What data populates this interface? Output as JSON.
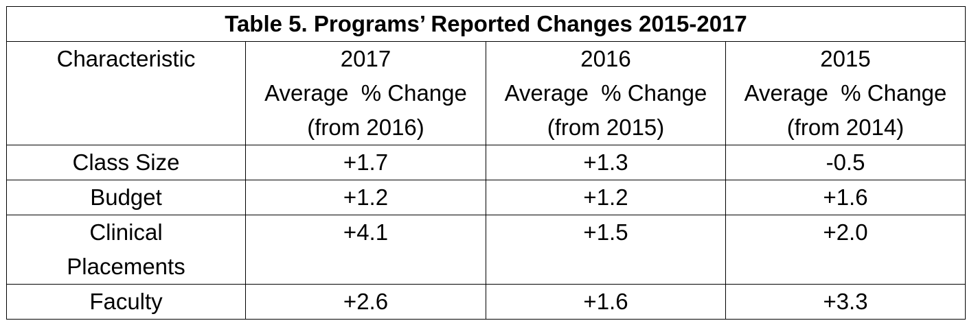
{
  "table": {
    "title": "Table 5. Programs’ Reported Changes 2015-2017",
    "columns": [
      {
        "line1": "Characteristic",
        "line2": "",
        "line3": ""
      },
      {
        "line1": "2017",
        "line2": "Average  % Change",
        "line3": "(from 2016)"
      },
      {
        "line1": "2016",
        "line2": "Average  % Change",
        "line3": "(from 2015)"
      },
      {
        "line1": "2015",
        "line2": "Average  % Change",
        "line3": "(from 2014)"
      }
    ],
    "rows": [
      {
        "characteristic_line1": "Class Size",
        "characteristic_line2": "",
        "v2017": "+1.7",
        "v2016": "+1.3",
        "v2015": "-0.5"
      },
      {
        "characteristic_line1": "Budget",
        "characteristic_line2": "",
        "v2017": "+1.2",
        "v2016": "+1.2",
        "v2015": "+1.6"
      },
      {
        "characteristic_line1": "Clinical",
        "characteristic_line2": "Placements",
        "v2017": "+4.1",
        "v2016": "+1.5",
        "v2015": "+2.0"
      },
      {
        "characteristic_line1": "Faculty",
        "characteristic_line2": "",
        "v2017": "+2.6",
        "v2016": "+1.6",
        "v2015": "+3.3"
      }
    ]
  }
}
